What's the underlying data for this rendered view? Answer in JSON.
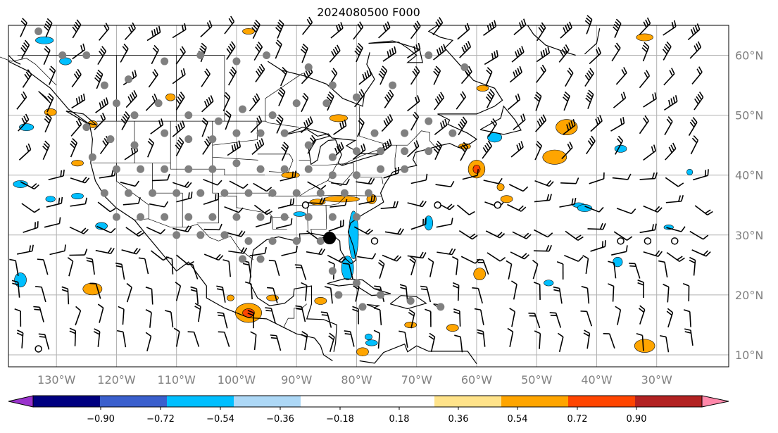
{
  "title": "2024080500 F000",
  "map": {
    "projection": "plate-carree",
    "lon_range": [
      -138,
      -18
    ],
    "lat_range": [
      8,
      65
    ],
    "grid": true,
    "lon_labels": [
      "130°W",
      "120°W",
      "110°W",
      "100°W",
      "90°W",
      "80°W",
      "70°W",
      "60°W",
      "50°W",
      "40°W",
      "30°W"
    ],
    "lat_labels": [
      "60°N",
      "50°N",
      "40°N",
      "30°N",
      "20°N",
      "10°N"
    ],
    "features": {
      "grey_dots": "station markers (gray) over North America",
      "black_dot_lon_lat": [
        -84.5,
        29.5
      ],
      "open_circles_lon_lat": [
        [
          -88.5,
          35
        ],
        [
          -66.5,
          35
        ],
        [
          -56.5,
          35
        ],
        [
          -77,
          29
        ],
        [
          -31.5,
          29
        ],
        [
          -36,
          29
        ],
        [
          -27,
          29
        ],
        [
          -133,
          11
        ]
      ]
    }
  },
  "colorbar": {
    "extend": "both",
    "colors": [
      "#9932CC",
      "#000080",
      "#3A5FCD",
      "#00BFFF",
      "#ADD8F6",
      "#FFFFFF",
      "#FFFFFF",
      "#FFE38A",
      "#FFA500",
      "#FF4500",
      "#B22222",
      "#FF88AA"
    ],
    "ticks": [
      "−0.90",
      "−0.72",
      "−0.54",
      "−0.36",
      "−0.18",
      "0.18",
      "0.36",
      "0.54",
      "0.72",
      "0.90"
    ]
  },
  "colors": {
    "coast": "#000000",
    "grid": "#b0b0b0",
    "station": "#808080",
    "positive": "#FFA500",
    "negative": "#00BFFF"
  }
}
